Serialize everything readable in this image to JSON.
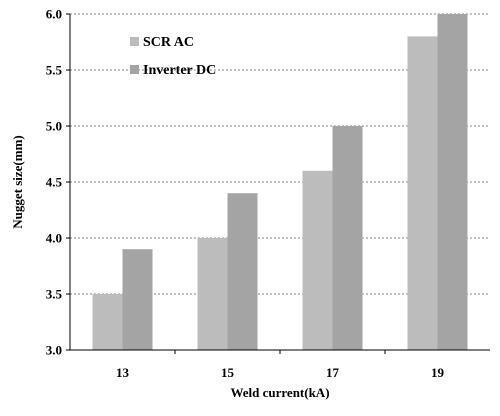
{
  "chart_data": {
    "type": "bar",
    "categories": [
      "13",
      "15",
      "17",
      "19"
    ],
    "series": [
      {
        "name": "SCR AC",
        "values": [
          3.5,
          4.0,
          4.6,
          5.8
        ],
        "color": "#bcbcbc"
      },
      {
        "name": "Inverter DC",
        "values": [
          3.9,
          4.4,
          5.0,
          6.0
        ],
        "color": "#a4a4a4"
      }
    ],
    "xlabel": "Weld current(kA)",
    "ylabel": "Nugget size(mm)",
    "ylim": [
      3.0,
      6.0
    ],
    "yticks": [
      "3.0",
      "3.5",
      "4.0",
      "4.5",
      "5.0",
      "5.5",
      "6.0"
    ],
    "grid": true,
    "legend_position": "top-left"
  }
}
